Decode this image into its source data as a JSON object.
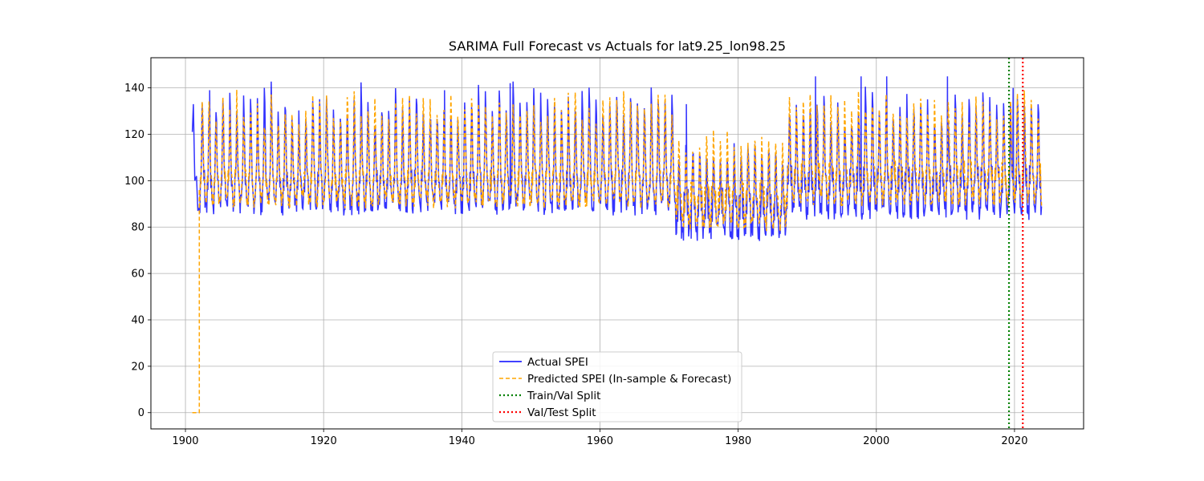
{
  "chart_data": {
    "type": "line",
    "title": "SARIMA Full Forecast vs Actuals for lat9.25_lon98.25",
    "xlabel": "",
    "ylabel": "",
    "xlim": [
      1895,
      2030
    ],
    "ylim": [
      -7,
      153
    ],
    "xticks": [
      1900,
      1920,
      1940,
      1960,
      1980,
      2000,
      2020
    ],
    "yticks": [
      0,
      20,
      40,
      60,
      80,
      100,
      120,
      140
    ],
    "grid": true,
    "legend_position": "lower-center",
    "series": [
      {
        "name": "Actual SPEI",
        "color": "#0000ff",
        "style": "solid",
        "x_start": 1901.0,
        "x_end": 2024.0,
        "period_years": 1,
        "first_points": [
          [
            1901.0,
            121
          ],
          [
            1901.15,
            133
          ],
          [
            1901.35,
            100
          ],
          [
            1901.6,
            102
          ],
          [
            1901.8,
            87
          ]
        ],
        "segments": [
          {
            "from": 1902,
            "to": 1971,
            "peak": 136,
            "trough": 89,
            "mid": 100
          },
          {
            "from": 1971,
            "to": 1987,
            "peak": 114,
            "trough": 78,
            "mid": 92
          },
          {
            "from": 1987,
            "to": 2024,
            "peak": 135,
            "trough": 87,
            "mid": 102
          }
        ],
        "notable_peaks": [
          [
            1903.5,
            139
          ],
          [
            1937.5,
            139
          ],
          [
            1947,
            142
          ],
          [
            1972.5,
            133
          ],
          [
            1991.2,
            145
          ],
          [
            1997.8,
            145
          ],
          [
            2001.5,
            145
          ],
          [
            2010.3,
            145
          ],
          [
            2019.8,
            140
          ]
        ],
        "notable_troughs": [
          [
            1971.8,
            75
          ],
          [
            1973.2,
            75
          ],
          [
            1979.2,
            75
          ],
          [
            1986.8,
            77
          ]
        ]
      },
      {
        "name": "Predicted SPEI (In-sample & Forecast)",
        "color": "#ffa500",
        "style": "dashed",
        "x_start": 1901.0,
        "x_end": 2024.0,
        "initial_zero_until": 1902.0,
        "segments": [
          {
            "from": 1902,
            "to": 1971,
            "peak": 134,
            "trough": 91,
            "mid": 100
          },
          {
            "from": 1971,
            "to": 1987,
            "peak": 118,
            "trough": 81,
            "mid": 95
          },
          {
            "from": 1987,
            "to": 2024,
            "peak": 134,
            "trough": 92,
            "mid": 104
          }
        ]
      },
      {
        "name": "Train/Val Split",
        "color": "#008000",
        "style": "dotted",
        "x": 2019.2
      },
      {
        "name": "Val/Test Split",
        "color": "#ff0000",
        "style": "dotted",
        "x": 2021.2
      }
    ]
  }
}
